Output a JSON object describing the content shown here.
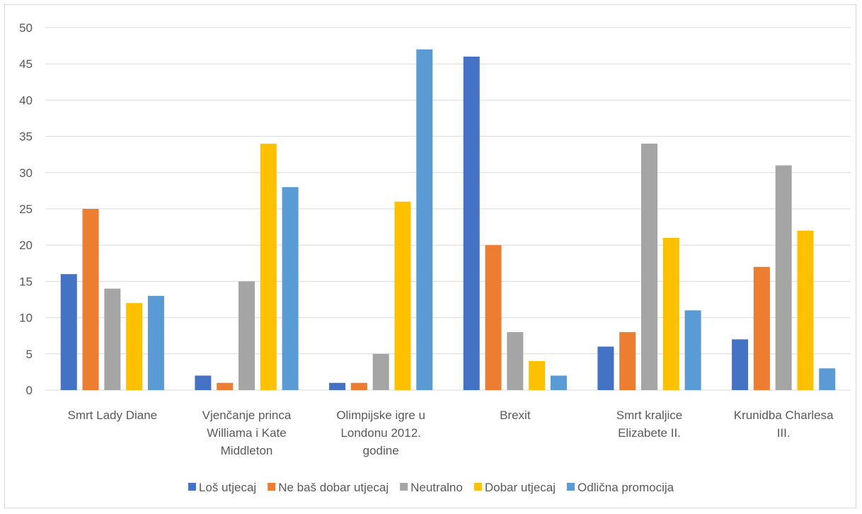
{
  "chart_data": {
    "type": "bar",
    "title": "",
    "xlabel": "",
    "ylabel": "",
    "ylim": [
      0,
      50
    ],
    "yticks": [
      0,
      5,
      10,
      15,
      20,
      25,
      30,
      35,
      40,
      45,
      50
    ],
    "grid": true,
    "legend_position": "bottom",
    "categories": [
      [
        "Smrt Lady Diane"
      ],
      [
        "Vjenčanje princa",
        "Williama i Kate",
        "Middleton"
      ],
      [
        "Olimpijske igre u",
        "Londonu 2012.",
        "godine"
      ],
      [
        "Brexit"
      ],
      [
        "Smrt kraljice",
        "Elizabete II."
      ],
      [
        "Krunidba Charlesa",
        "III."
      ]
    ],
    "series": [
      {
        "name": "Loš utjecaj",
        "color": "#4472c4",
        "values": [
          16,
          2,
          1,
          46,
          6,
          7
        ]
      },
      {
        "name": "Ne baš dobar utjecaj",
        "color": "#ed7d31",
        "values": [
          25,
          1,
          1,
          20,
          8,
          17
        ]
      },
      {
        "name": "Neutralno",
        "color": "#a5a5a5",
        "values": [
          14,
          15,
          5,
          8,
          34,
          31
        ]
      },
      {
        "name": "Dobar utjecaj",
        "color": "#ffc000",
        "values": [
          12,
          34,
          26,
          4,
          21,
          22
        ]
      },
      {
        "name": "Odlična promocija",
        "color": "#5b9bd5",
        "values": [
          13,
          28,
          47,
          2,
          11,
          3
        ]
      }
    ]
  }
}
